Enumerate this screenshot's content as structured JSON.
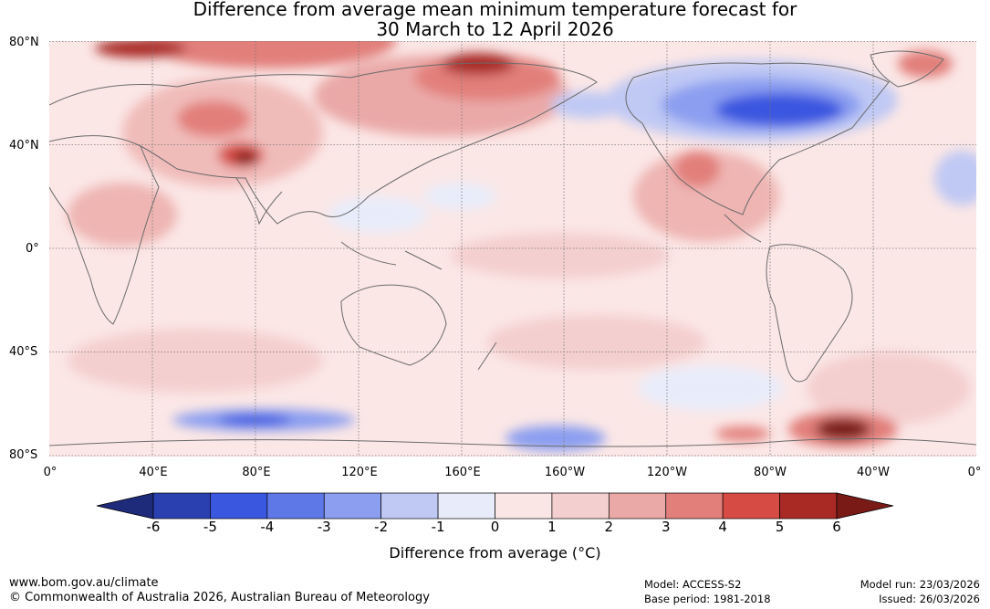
{
  "title": {
    "line1": "Difference from average mean minimum temperature forecast for",
    "line2": "30 March to 12 April 2026"
  },
  "map": {
    "lat_labels": [
      "80°N",
      "40°N",
      "0°",
      "40°S",
      "80°S"
    ],
    "lon_labels": [
      "0°",
      "40°E",
      "80°E",
      "120°E",
      "160°E",
      "160°W",
      "120°W",
      "80°W",
      "40°W",
      "0°"
    ]
  },
  "colorbar": {
    "ticks": [
      "-6",
      "-5",
      "-4",
      "-3",
      "-2",
      "-1",
      "0",
      "1",
      "2",
      "3",
      "4",
      "5",
      "6"
    ],
    "colors": [
      "#1e2a7a",
      "#2b40b0",
      "#3a57e0",
      "#5e78e8",
      "#8b9ef0",
      "#c0c9f4",
      "#e8ecfa",
      "#fbe6e6",
      "#f4cfcf",
      "#eaa9a7",
      "#e27f7a",
      "#d64c45",
      "#a92a25",
      "#7a1a17"
    ],
    "label": "Difference from average (°C)"
  },
  "footer": {
    "url": "www.bom.gov.au/climate",
    "copyright": "© Commonwealth of Australia 2026, Australian Bureau of Meteorology",
    "model": "Model: ACCESS-S2",
    "base_period": "Base period: 1981-2018",
    "model_run": "Model run: 23/03/2026",
    "issued": "Issued: 26/03/2026"
  }
}
